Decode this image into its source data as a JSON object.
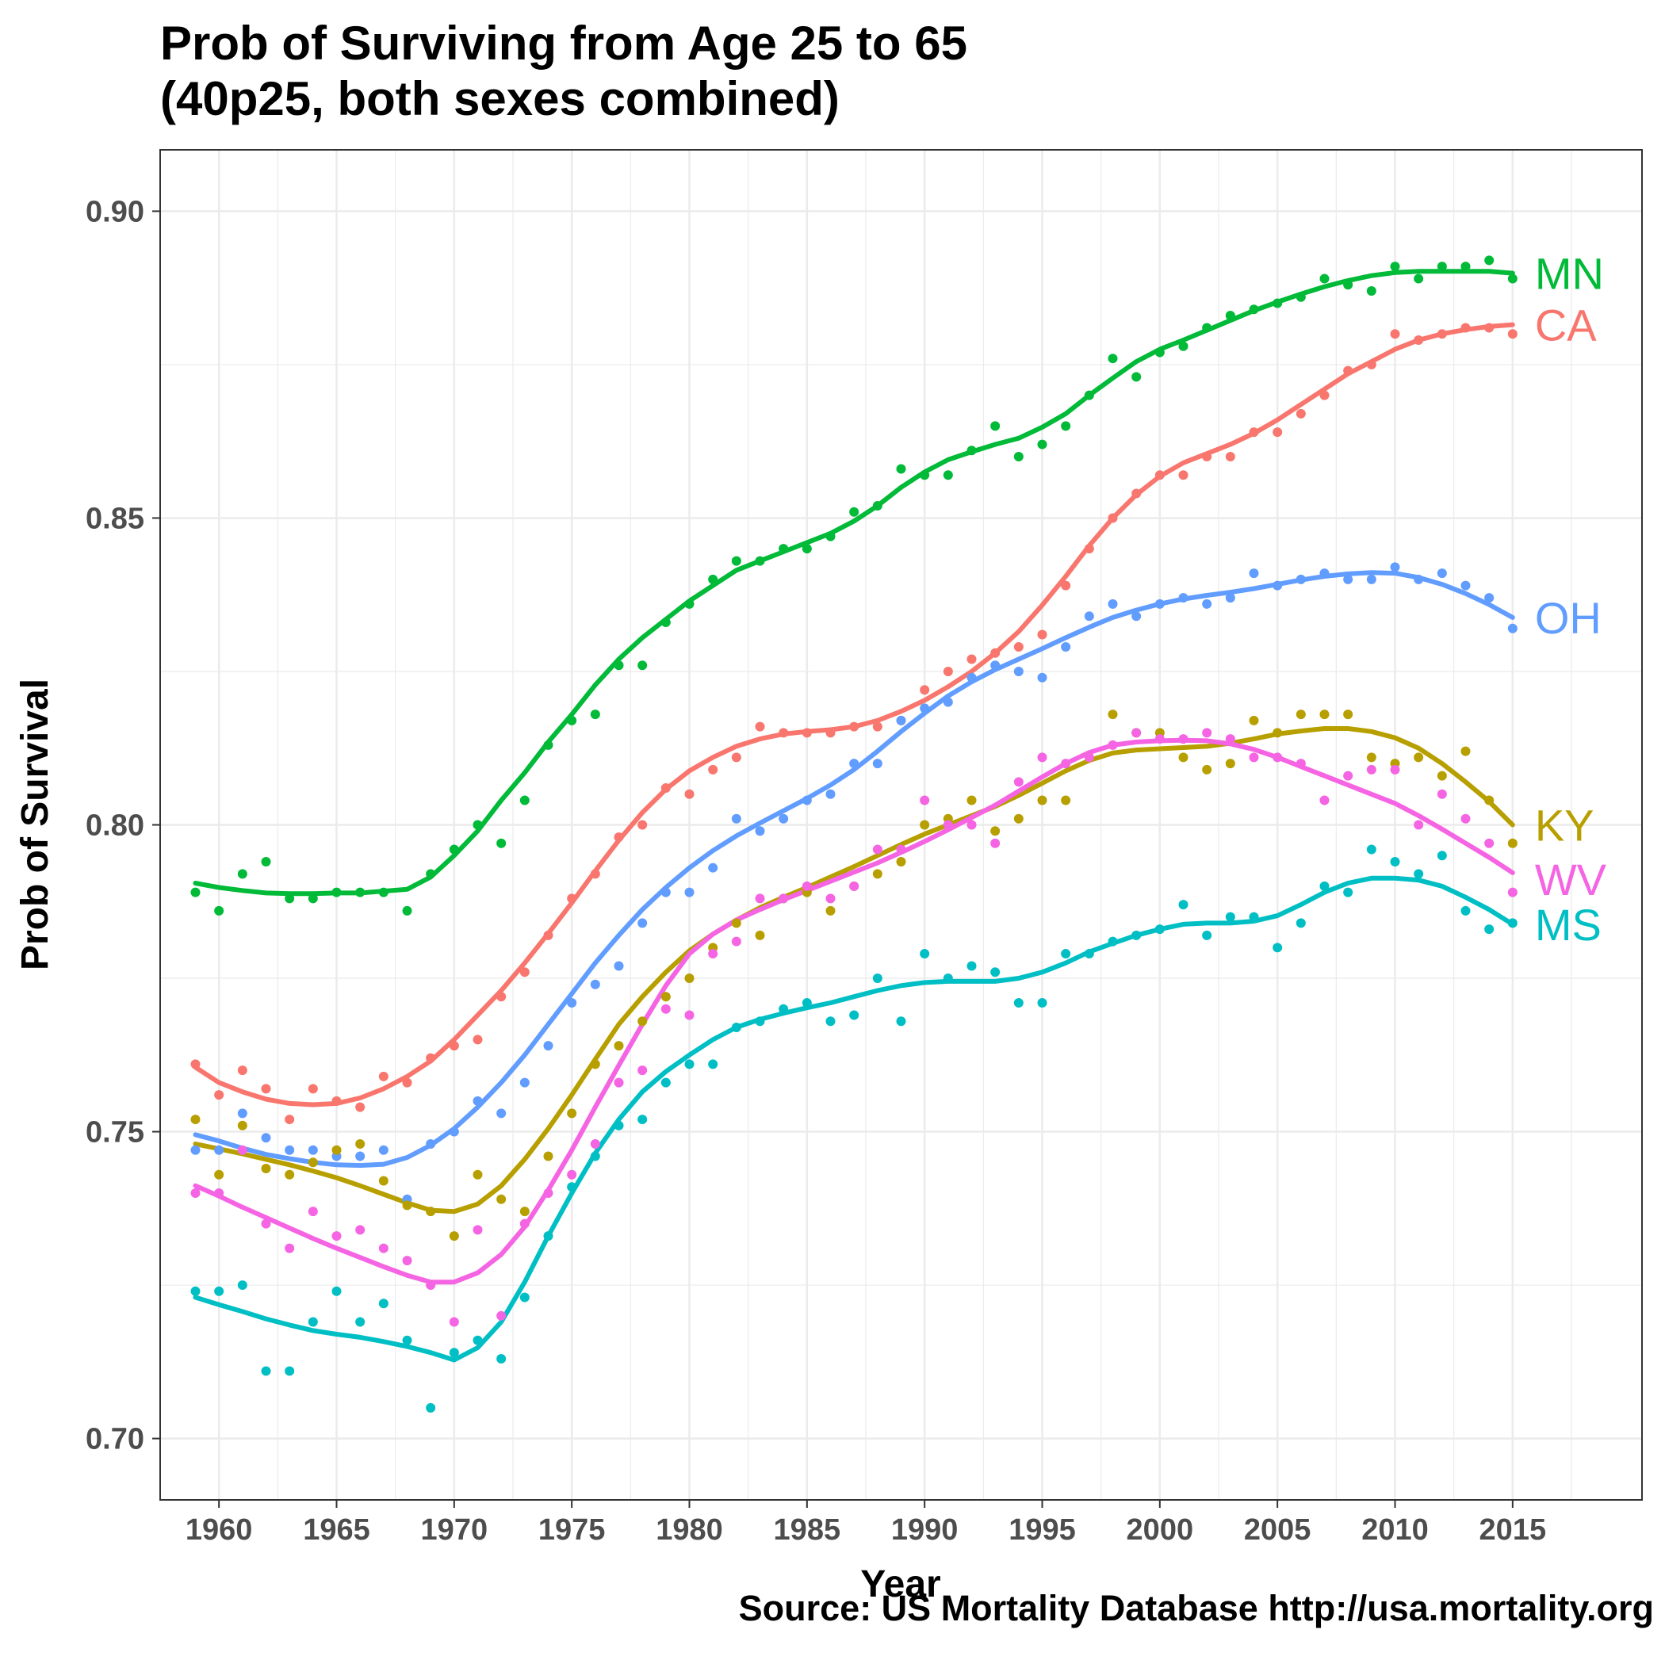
{
  "chart_data": {
    "type": "line",
    "title": [
      "Prob of Surviving from Age 25 to 65",
      "(40p25, both sexes combined)"
    ],
    "xlabel": "Year",
    "ylabel": "Prob of Survival",
    "caption": "Source: US Mortality Database http://usa.mortality.org",
    "xlim": [
      1957.5,
      2020.5
    ],
    "ylim": [
      0.69,
      0.91
    ],
    "xticks": [
      1960,
      1965,
      1970,
      1975,
      1980,
      1985,
      1990,
      1995,
      2000,
      2005,
      2010,
      2015
    ],
    "xtick_labels": [
      "1960",
      "1965",
      "1970",
      "1975",
      "1980",
      "1985",
      "1990",
      "1995",
      "2000",
      "2005",
      "2010",
      "2015"
    ],
    "yticks": [
      0.7,
      0.75,
      0.8,
      0.85,
      0.9
    ],
    "ytick_labels": [
      "0.70",
      "0.75",
      "0.80",
      "0.85",
      "0.90"
    ],
    "grid": true,
    "legend": "direct labels at line ends",
    "x": [
      1959,
      1960,
      1961,
      1962,
      1963,
      1964,
      1965,
      1966,
      1967,
      1968,
      1969,
      1970,
      1971,
      1972,
      1973,
      1974,
      1975,
      1976,
      1977,
      1978,
      1979,
      1980,
      1981,
      1982,
      1983,
      1984,
      1985,
      1986,
      1987,
      1988,
      1989,
      1990,
      1991,
      1992,
      1993,
      1994,
      1995,
      1996,
      1997,
      1998,
      1999,
      2000,
      2001,
      2002,
      2003,
      2004,
      2005,
      2006,
      2007,
      2008,
      2009,
      2010,
      2011,
      2012,
      2013,
      2014,
      2015
    ],
    "series": [
      {
        "name": "MN",
        "color": "#00BA38",
        "points": [
          0.789,
          0.786,
          0.792,
          0.794,
          0.788,
          0.788,
          0.789,
          0.789,
          0.789,
          0.786,
          0.792,
          0.796,
          0.8,
          0.797,
          0.804,
          0.813,
          0.817,
          0.818,
          0.826,
          0.826,
          0.833,
          0.836,
          0.84,
          0.843,
          0.843,
          0.845,
          0.845,
          0.847,
          0.851,
          0.852,
          0.858,
          0.857,
          0.857,
          0.861,
          0.865,
          0.86,
          0.862,
          0.865,
          0.87,
          0.876,
          0.873,
          0.877,
          0.878,
          0.881,
          0.883,
          0.884,
          0.885,
          0.886,
          0.889,
          0.888,
          0.887,
          0.891,
          0.889,
          0.891,
          0.891,
          0.892,
          0.889
        ],
        "smooth": [
          0.7905,
          0.7898,
          0.7893,
          0.7889,
          0.7888,
          0.7888,
          0.7889,
          0.7889,
          0.7892,
          0.7895,
          0.7915,
          0.795,
          0.799,
          0.804,
          0.8085,
          0.8135,
          0.818,
          0.8228,
          0.827,
          0.8305,
          0.8335,
          0.8365,
          0.839,
          0.8415,
          0.843,
          0.8445,
          0.846,
          0.8475,
          0.8495,
          0.852,
          0.855,
          0.8575,
          0.8595,
          0.8608,
          0.862,
          0.863,
          0.8648,
          0.867,
          0.87,
          0.8728,
          0.8755,
          0.8775,
          0.879,
          0.8806,
          0.8822,
          0.8838,
          0.8852,
          0.8865,
          0.8877,
          0.8887,
          0.8895,
          0.89,
          0.8902,
          0.8902,
          0.8902,
          0.8902,
          0.8899
        ]
      },
      {
        "name": "CA",
        "color": "#F8766D",
        "points": [
          0.761,
          0.756,
          0.76,
          0.757,
          0.752,
          0.757,
          0.755,
          0.754,
          0.759,
          0.758,
          0.762,
          0.764,
          0.765,
          0.772,
          0.776,
          0.782,
          0.788,
          0.792,
          0.798,
          0.8,
          0.806,
          0.805,
          0.809,
          0.811,
          0.816,
          0.815,
          0.815,
          0.815,
          0.816,
          0.816,
          0.817,
          0.822,
          0.825,
          0.827,
          0.828,
          0.829,
          0.831,
          0.839,
          0.845,
          0.85,
          0.854,
          0.857,
          0.857,
          0.86,
          0.86,
          0.864,
          0.864,
          0.867,
          0.87,
          0.874,
          0.875,
          0.88,
          0.879,
          0.88,
          0.881,
          0.881,
          0.88
        ],
        "smooth": [
          0.7605,
          0.758,
          0.7565,
          0.7553,
          0.7546,
          0.7544,
          0.7546,
          0.7555,
          0.757,
          0.759,
          0.7615,
          0.765,
          0.769,
          0.773,
          0.7775,
          0.7823,
          0.7873,
          0.7925,
          0.7975,
          0.802,
          0.8058,
          0.8088,
          0.811,
          0.8128,
          0.814,
          0.8148,
          0.8152,
          0.8155,
          0.816,
          0.817,
          0.8185,
          0.8203,
          0.8225,
          0.825,
          0.828,
          0.8315,
          0.8358,
          0.8405,
          0.8455,
          0.85,
          0.8538,
          0.8568,
          0.859,
          0.8605,
          0.862,
          0.8638,
          0.866,
          0.8685,
          0.871,
          0.8735,
          0.8755,
          0.8775,
          0.879,
          0.88,
          0.8807,
          0.8812,
          0.8815
        ]
      },
      {
        "name": "OH",
        "color": "#619CFF",
        "points": [
          0.747,
          0.747,
          0.753,
          0.749,
          0.747,
          0.747,
          0.746,
          0.746,
          0.747,
          0.739,
          0.748,
          0.75,
          0.755,
          0.753,
          0.758,
          0.764,
          0.771,
          0.774,
          0.777,
          0.784,
          0.789,
          0.789,
          0.793,
          0.801,
          0.799,
          0.801,
          0.804,
          0.805,
          0.81,
          0.81,
          0.817,
          0.819,
          0.82,
          0.824,
          0.826,
          0.825,
          0.824,
          0.829,
          0.834,
          0.836,
          0.834,
          0.836,
          0.837,
          0.836,
          0.837,
          0.841,
          0.839,
          0.84,
          0.841,
          0.84,
          0.84,
          0.842,
          0.84,
          0.841,
          0.839,
          0.837,
          0.832
        ],
        "smooth": [
          0.7495,
          0.7485,
          0.7473,
          0.7463,
          0.7456,
          0.745,
          0.7446,
          0.7445,
          0.7447,
          0.7458,
          0.7478,
          0.7505,
          0.754,
          0.758,
          0.7625,
          0.7675,
          0.7725,
          0.7775,
          0.782,
          0.7862,
          0.7898,
          0.793,
          0.7958,
          0.7982,
          0.8003,
          0.8023,
          0.8043,
          0.8065,
          0.809,
          0.812,
          0.8152,
          0.8182,
          0.821,
          0.8233,
          0.8253,
          0.827,
          0.8287,
          0.8305,
          0.8322,
          0.8338,
          0.835,
          0.836,
          0.8368,
          0.8374,
          0.8379,
          0.8385,
          0.8392,
          0.8399,
          0.8405,
          0.8409,
          0.8411,
          0.841,
          0.8403,
          0.8392,
          0.8377,
          0.8359,
          0.8338
        ]
      },
      {
        "name": "KY",
        "color": "#B79F00",
        "points": [
          0.752,
          0.743,
          0.751,
          0.744,
          0.743,
          0.745,
          0.747,
          0.748,
          0.742,
          0.738,
          0.737,
          0.733,
          0.743,
          0.739,
          0.737,
          0.746,
          0.753,
          0.761,
          0.764,
          0.768,
          0.772,
          0.775,
          0.78,
          0.784,
          0.782,
          0.788,
          0.789,
          0.786,
          0.79,
          0.792,
          0.794,
          0.8,
          0.801,
          0.804,
          0.799,
          0.801,
          0.804,
          0.804,
          0.811,
          0.818,
          0.815,
          0.815,
          0.811,
          0.809,
          0.81,
          0.817,
          0.815,
          0.818,
          0.818,
          0.818,
          0.811,
          0.81,
          0.811,
          0.808,
          0.812,
          0.804,
          0.797
        ],
        "smooth": [
          0.748,
          0.7472,
          0.7464,
          0.7455,
          0.7446,
          0.7436,
          0.7425,
          0.7412,
          0.7398,
          0.7384,
          0.7372,
          0.737,
          0.7382,
          0.7412,
          0.7455,
          0.7505,
          0.756,
          0.7618,
          0.7675,
          0.772,
          0.776,
          0.7795,
          0.7822,
          0.7845,
          0.7865,
          0.7882,
          0.7898,
          0.7915,
          0.7932,
          0.795,
          0.7968,
          0.7985,
          0.8,
          0.8015,
          0.803,
          0.8048,
          0.8068,
          0.8088,
          0.8105,
          0.8117,
          0.8122,
          0.8124,
          0.8126,
          0.8128,
          0.8133,
          0.814,
          0.8148,
          0.8153,
          0.8157,
          0.8157,
          0.8152,
          0.8142,
          0.8125,
          0.81,
          0.807,
          0.8038,
          0.8
        ]
      },
      {
        "name": "WV",
        "color": "#F564E3",
        "points": [
          0.74,
          0.74,
          0.747,
          0.735,
          0.731,
          0.737,
          0.733,
          0.734,
          0.731,
          0.729,
          0.725,
          0.719,
          0.734,
          0.72,
          0.735,
          0.74,
          0.743,
          0.748,
          0.758,
          0.76,
          0.77,
          0.769,
          0.779,
          0.781,
          0.788,
          0.788,
          0.79,
          0.788,
          0.79,
          0.796,
          0.796,
          0.804,
          0.8,
          0.8,
          0.797,
          0.807,
          0.811,
          0.81,
          0.811,
          0.813,
          0.815,
          0.814,
          0.814,
          0.815,
          0.814,
          0.811,
          0.811,
          0.81,
          0.804,
          0.808,
          0.809,
          0.809,
          0.8,
          0.805,
          0.801,
          0.797,
          0.789
        ],
        "smooth": [
          0.7412,
          0.7395,
          0.7377,
          0.736,
          0.7343,
          0.7326,
          0.731,
          0.7295,
          0.728,
          0.7266,
          0.7255,
          0.7255,
          0.727,
          0.73,
          0.7345,
          0.7405,
          0.747,
          0.754,
          0.7608,
          0.7675,
          0.7738,
          0.779,
          0.7822,
          0.7845,
          0.7862,
          0.7878,
          0.7893,
          0.7908,
          0.7923,
          0.7938,
          0.7955,
          0.7973,
          0.7992,
          0.8012,
          0.8032,
          0.8055,
          0.8078,
          0.81,
          0.8118,
          0.813,
          0.8135,
          0.8137,
          0.8138,
          0.8137,
          0.8132,
          0.8123,
          0.811,
          0.8095,
          0.808,
          0.8065,
          0.805,
          0.8035,
          0.8015,
          0.7993,
          0.797,
          0.7947,
          0.7922
        ]
      },
      {
        "name": "MS",
        "color": "#00BFC4",
        "points": [
          0.724,
          0.724,
          0.725,
          0.711,
          0.711,
          0.719,
          0.724,
          0.719,
          0.722,
          0.716,
          0.705,
          0.714,
          0.716,
          0.713,
          0.723,
          0.733,
          0.741,
          0.746,
          0.751,
          0.752,
          0.758,
          0.761,
          0.761,
          0.767,
          0.768,
          0.77,
          0.771,
          0.768,
          0.769,
          0.775,
          0.768,
          0.779,
          0.775,
          0.777,
          0.776,
          0.771,
          0.771,
          0.779,
          0.779,
          0.781,
          0.782,
          0.783,
          0.787,
          0.782,
          0.785,
          0.785,
          0.78,
          0.784,
          0.79,
          0.789,
          0.796,
          0.794,
          0.792,
          0.795,
          0.786,
          0.783,
          0.784
        ],
        "smooth": [
          0.723,
          0.7218,
          0.7207,
          0.7195,
          0.7185,
          0.7176,
          0.717,
          0.7165,
          0.7158,
          0.715,
          0.714,
          0.7128,
          0.7148,
          0.719,
          0.7255,
          0.733,
          0.74,
          0.7465,
          0.752,
          0.7565,
          0.7598,
          0.7625,
          0.765,
          0.767,
          0.7683,
          0.7693,
          0.7702,
          0.771,
          0.772,
          0.773,
          0.7738,
          0.7743,
          0.7745,
          0.7745,
          0.7745,
          0.775,
          0.776,
          0.7775,
          0.7793,
          0.7807,
          0.782,
          0.783,
          0.7838,
          0.784,
          0.784,
          0.7843,
          0.7852,
          0.787,
          0.789,
          0.7905,
          0.7913,
          0.7913,
          0.791,
          0.79,
          0.7882,
          0.7862,
          0.7838
        ]
      }
    ]
  }
}
